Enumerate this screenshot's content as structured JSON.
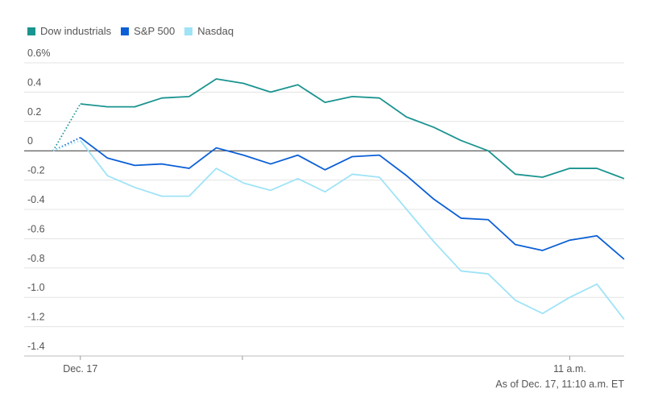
{
  "chart_data": {
    "type": "line",
    "categories": [
      null,
      "Dec. 17",
      null,
      null,
      null,
      null,
      null,
      null,
      null,
      null,
      null,
      null,
      null,
      null,
      null,
      null,
      null,
      null,
      null,
      "11 a.m.",
      null,
      null
    ],
    "series": [
      {
        "name": "Dow industrials",
        "color": "#1a9490",
        "values": [
          0,
          0.32,
          0.3,
          0.3,
          0.36,
          0.37,
          0.49,
          0.46,
          0.4,
          0.45,
          0.33,
          0.37,
          0.36,
          0.23,
          0.16,
          0.07,
          0.0,
          -0.16,
          -0.18,
          -0.12,
          -0.12,
          -0.19
        ]
      },
      {
        "name": "S&P 500",
        "color": "#0a5fd6",
        "values": [
          0,
          0.09,
          -0.05,
          -0.1,
          -0.09,
          -0.12,
          0.02,
          -0.03,
          -0.09,
          -0.03,
          -0.13,
          -0.04,
          -0.03,
          -0.17,
          -0.33,
          -0.46,
          -0.47,
          -0.64,
          -0.68,
          -0.61,
          -0.58,
          -0.74
        ]
      },
      {
        "name": "Nasdaq",
        "color": "#9fe3f7",
        "values": [
          0,
          0.07,
          -0.17,
          -0.25,
          -0.31,
          -0.31,
          -0.12,
          -0.22,
          -0.27,
          -0.19,
          -0.28,
          -0.16,
          -0.18,
          -0.4,
          -0.62,
          -0.82,
          -0.84,
          -1.02,
          -1.11,
          -1.0,
          -0.91,
          -1.15
        ]
      }
    ],
    "ylim": [
      -1.4,
      0.6
    ],
    "yticks": [
      {
        "value": 0.6,
        "label": "0.6%"
      },
      0.4,
      0.2,
      0,
      -0.2,
      -0.4,
      -0.6,
      -0.8,
      {
        "value": -1,
        "label": "-1.0"
      },
      -1.2,
      -1.4
    ],
    "grid": true,
    "leading_dotted": true,
    "note": "As of Dec. 17, 11:10 a.m. ET"
  }
}
